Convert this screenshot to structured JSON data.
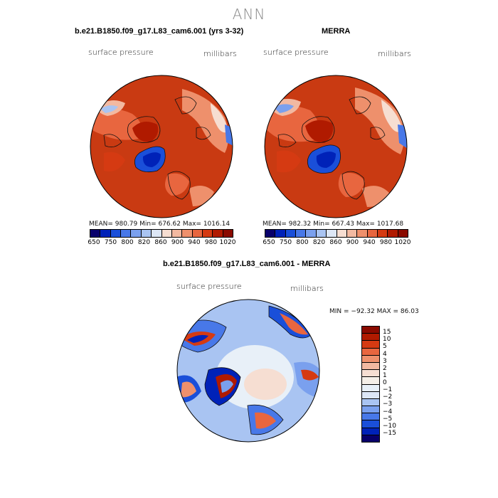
{
  "main_title": "ANN",
  "panel_left": {
    "title": "b.e21.B1850.f09_g17.L83_cam6.001 (yrs 3-32)",
    "variable": "surface pressure",
    "units": "millibars",
    "stats": "MEAN= 980.79   Min= 676.62   Max= 1016.14"
  },
  "panel_right": {
    "title": "MERRA",
    "variable": "surface pressure",
    "units": "millibars",
    "stats": "MEAN= 982.32   Min= 667.43   Max= 1017.68"
  },
  "panel_diff": {
    "title": "b.e21.B1850.f09_g17.L83_cam6.001 - MERRA",
    "variable": "surface pressure",
    "units": "millibars",
    "stats": "MIN = −92.32  MAX =  86.03"
  },
  "colorbar_abs": {
    "colors": [
      "#08006b",
      "#0022b8",
      "#1a4fd9",
      "#4878e8",
      "#7aa0ee",
      "#a9c4f2",
      "#dde7f6",
      "#f6ded2",
      "#f2b9a1",
      "#ee906c",
      "#e8663f",
      "#d53a12",
      "#b01a00",
      "#8a0a00"
    ],
    "tick_labels": [
      "650",
      "750",
      "800",
      "820",
      "860",
      "900",
      "940",
      "980",
      "1020"
    ]
  },
  "colorbar_diff": {
    "colors": [
      "#8a0a00",
      "#b01a00",
      "#d53a12",
      "#e8663f",
      "#ee906c",
      "#f2b9a1",
      "#f6ded2",
      "#f5efe8",
      "#e8f0f8",
      "#dde7f6",
      "#a9c4f2",
      "#7aa0ee",
      "#4878e8",
      "#1a4fd9",
      "#0022b8",
      "#08006b"
    ],
    "tick_labels": [
      "15",
      "10",
      "5",
      "4",
      "3",
      "2",
      "1",
      "0",
      "−1",
      "−2",
      "−3",
      "−4",
      "−5",
      "−10",
      "−15"
    ]
  }
}
